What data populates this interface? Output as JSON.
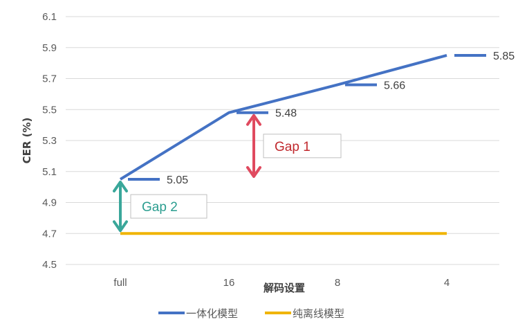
{
  "chart_data": {
    "type": "line",
    "xlabel": "解码设置",
    "ylabel": "CER (%)",
    "categories": [
      "full",
      "16",
      "8",
      "4"
    ],
    "ylim": [
      4.5,
      6.1
    ],
    "yticks": [
      "4.5",
      "4.7",
      "4.9",
      "5.1",
      "5.3",
      "5.5",
      "5.7",
      "5.9",
      "6.1"
    ],
    "grid": true,
    "legend": "bottom",
    "series": [
      {
        "name": "一体化模型",
        "color": "#4472c4",
        "values": [
          5.05,
          5.48,
          5.66,
          5.85
        ],
        "labels": [
          "5.05",
          "5.48",
          "5.66",
          "5.85"
        ]
      },
      {
        "name": "纯离线模型",
        "color": "#f0b400",
        "values": [
          4.7,
          4.7,
          4.7,
          4.7
        ]
      }
    ],
    "annotations": [
      {
        "text": "Gap 1",
        "color": "#e04a5f",
        "text_color": "#c0282d",
        "from": 5.48,
        "to": 5.05
      },
      {
        "text": "Gap 2",
        "color": "#3aa79a",
        "text_color": "#2a9d8f",
        "from": 5.05,
        "to": 4.7
      }
    ]
  }
}
